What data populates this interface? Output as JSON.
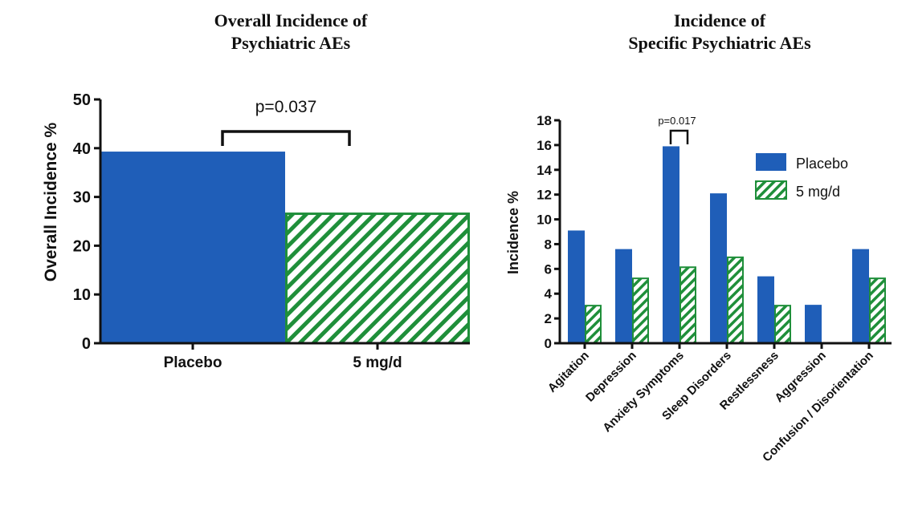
{
  "colors": {
    "placebo": "#1f5eb8",
    "treatment": "#1f8f3a",
    "hatch_bg": "#ffffff"
  },
  "chart_data": [
    {
      "type": "bar",
      "title_lines": [
        "Overall Incidence of",
        "Psychiatric AEs"
      ],
      "xlabel": "",
      "ylabel": "Overall Incidence %",
      "ylim": [
        0,
        50
      ],
      "yticks": [
        "0",
        "10",
        "20",
        "30",
        "40",
        "50"
      ],
      "categories": [
        "Placebo",
        "5 mg/d"
      ],
      "values": [
        39.3,
        26.8
      ],
      "annotation": "p=0.037"
    },
    {
      "type": "bar",
      "title_lines": [
        "Incidence of",
        "Specific Psychiatric AEs"
      ],
      "xlabel": "",
      "ylabel": "Incidence %",
      "ylim": [
        0,
        18
      ],
      "yticks": [
        "0",
        "2",
        "4",
        "6",
        "8",
        "10",
        "12",
        "14",
        "16",
        "18"
      ],
      "categories": [
        "Agitation",
        "Depression",
        "Anxiety Symptoms",
        "Sleep Disorders",
        "Restlessness",
        "Aggression",
        "Confusion / Disorientation"
      ],
      "series": [
        {
          "name": "Placebo",
          "values": [
            9.1,
            7.6,
            15.9,
            12.1,
            5.4,
            3.1,
            7.6
          ]
        },
        {
          "name": "5 mg/d",
          "values": [
            3.1,
            5.3,
            6.2,
            7.0,
            3.1,
            0,
            5.3
          ]
        }
      ],
      "legend_position": "top-right",
      "annotation": "p=0.017"
    }
  ]
}
